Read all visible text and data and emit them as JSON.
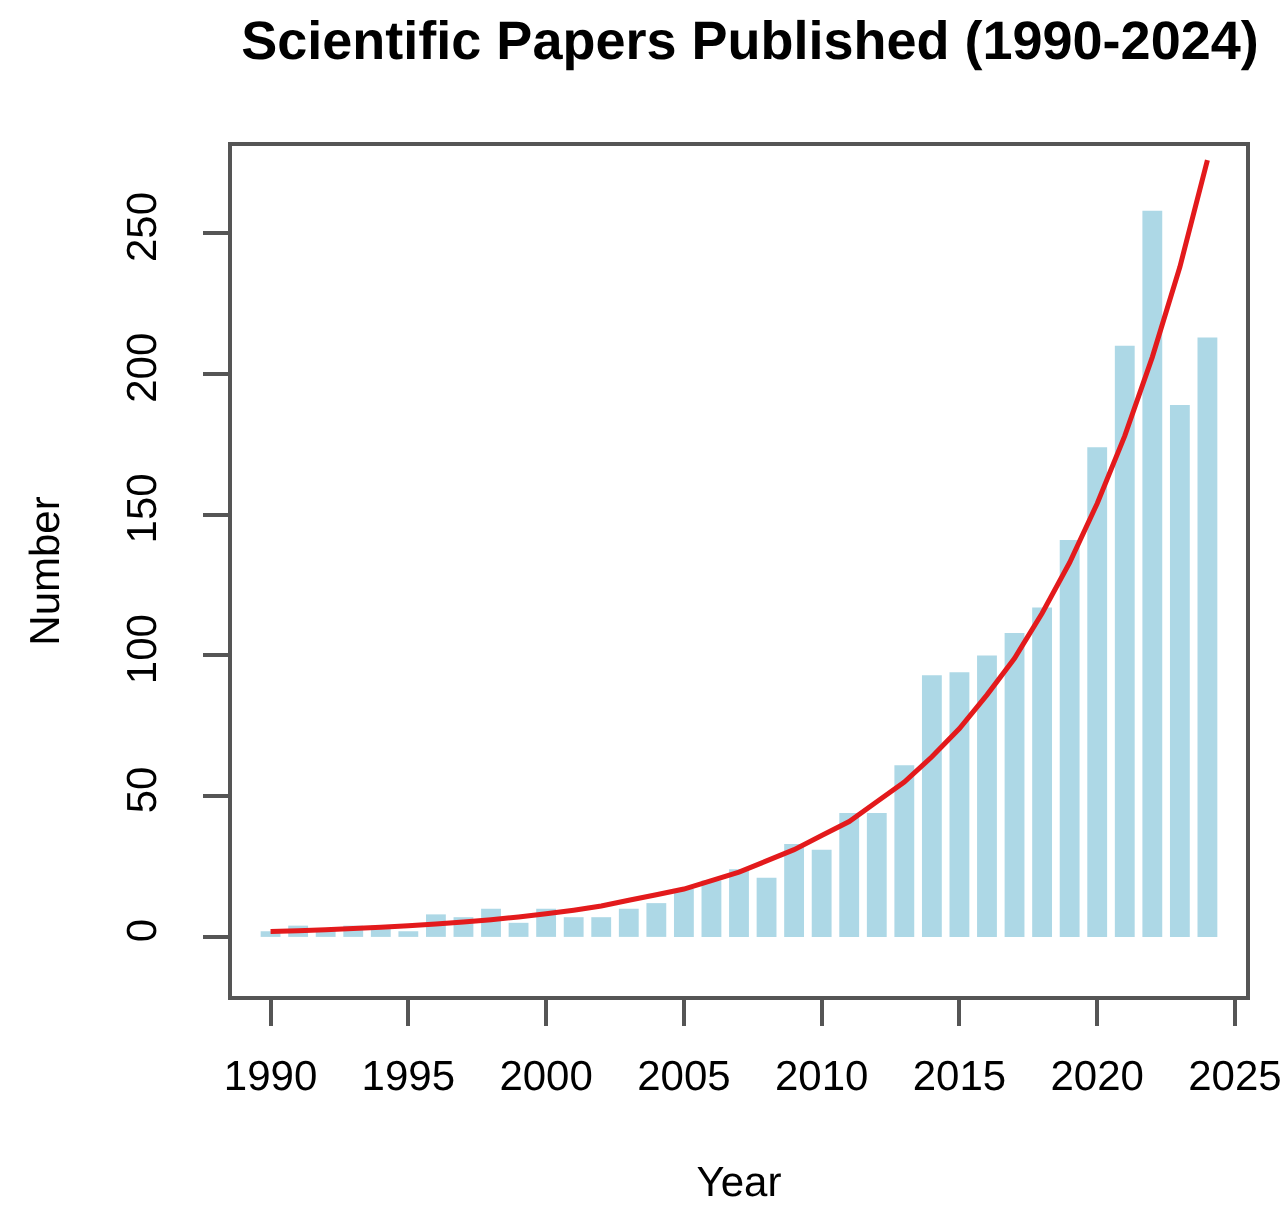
{
  "chart_data": {
    "type": "bar",
    "title": "Scientific Papers Published (1990-2024)",
    "xlabel": "Year",
    "ylabel": "Number",
    "x": [
      1990,
      1991,
      1992,
      1993,
      1994,
      1995,
      1996,
      1997,
      1998,
      1999,
      2000,
      2001,
      2002,
      2003,
      2004,
      2005,
      2006,
      2007,
      2008,
      2009,
      2010,
      2011,
      2012,
      2013,
      2014,
      2015,
      2016,
      2017,
      2018,
      2019,
      2020,
      2021,
      2022,
      2023,
      2024
    ],
    "series": [
      {
        "color": "#add8e6",
        "values": [
          2,
          4,
          3,
          4,
          4,
          2,
          8,
          7,
          10,
          5,
          10,
          7,
          7,
          10,
          12,
          17,
          20,
          24,
          21,
          33,
          31,
          44,
          44,
          61,
          93,
          94,
          100,
          108,
          117,
          141,
          174,
          210,
          258,
          189,
          213
        ]
      },
      {
        "type": "line",
        "color": "#e31a1c",
        "x": [
          1990,
          1991,
          1992,
          1993,
          1994,
          1995,
          1996,
          1997,
          1998,
          1999,
          2000,
          2001,
          2002,
          2003,
          2004,
          2005,
          2006,
          2007,
          2008,
          2009,
          2010,
          2011,
          2012,
          2013,
          2014,
          2015,
          2016,
          2017,
          2018,
          2019,
          2020,
          2021,
          2022,
          2023,
          2024
        ],
        "values": [
          1.9,
          2.2,
          2.5,
          3,
          3.4,
          4,
          4.6,
          5.3,
          6.1,
          7.1,
          8.2,
          9.5,
          11,
          13,
          15,
          17,
          20,
          23,
          27,
          31,
          36,
          41,
          48,
          55,
          64,
          74,
          86,
          99,
          115,
          133,
          154,
          178,
          206,
          238,
          276
        ]
      }
    ],
    "xlim": [
      1988.6,
      2025.4
    ],
    "ylim": [
      -21,
      281
    ],
    "xticks": [
      1990,
      1995,
      2000,
      2005,
      2010,
      2015,
      2020,
      2025
    ],
    "yticks": [
      0,
      50,
      100,
      150,
      200,
      250
    ]
  }
}
